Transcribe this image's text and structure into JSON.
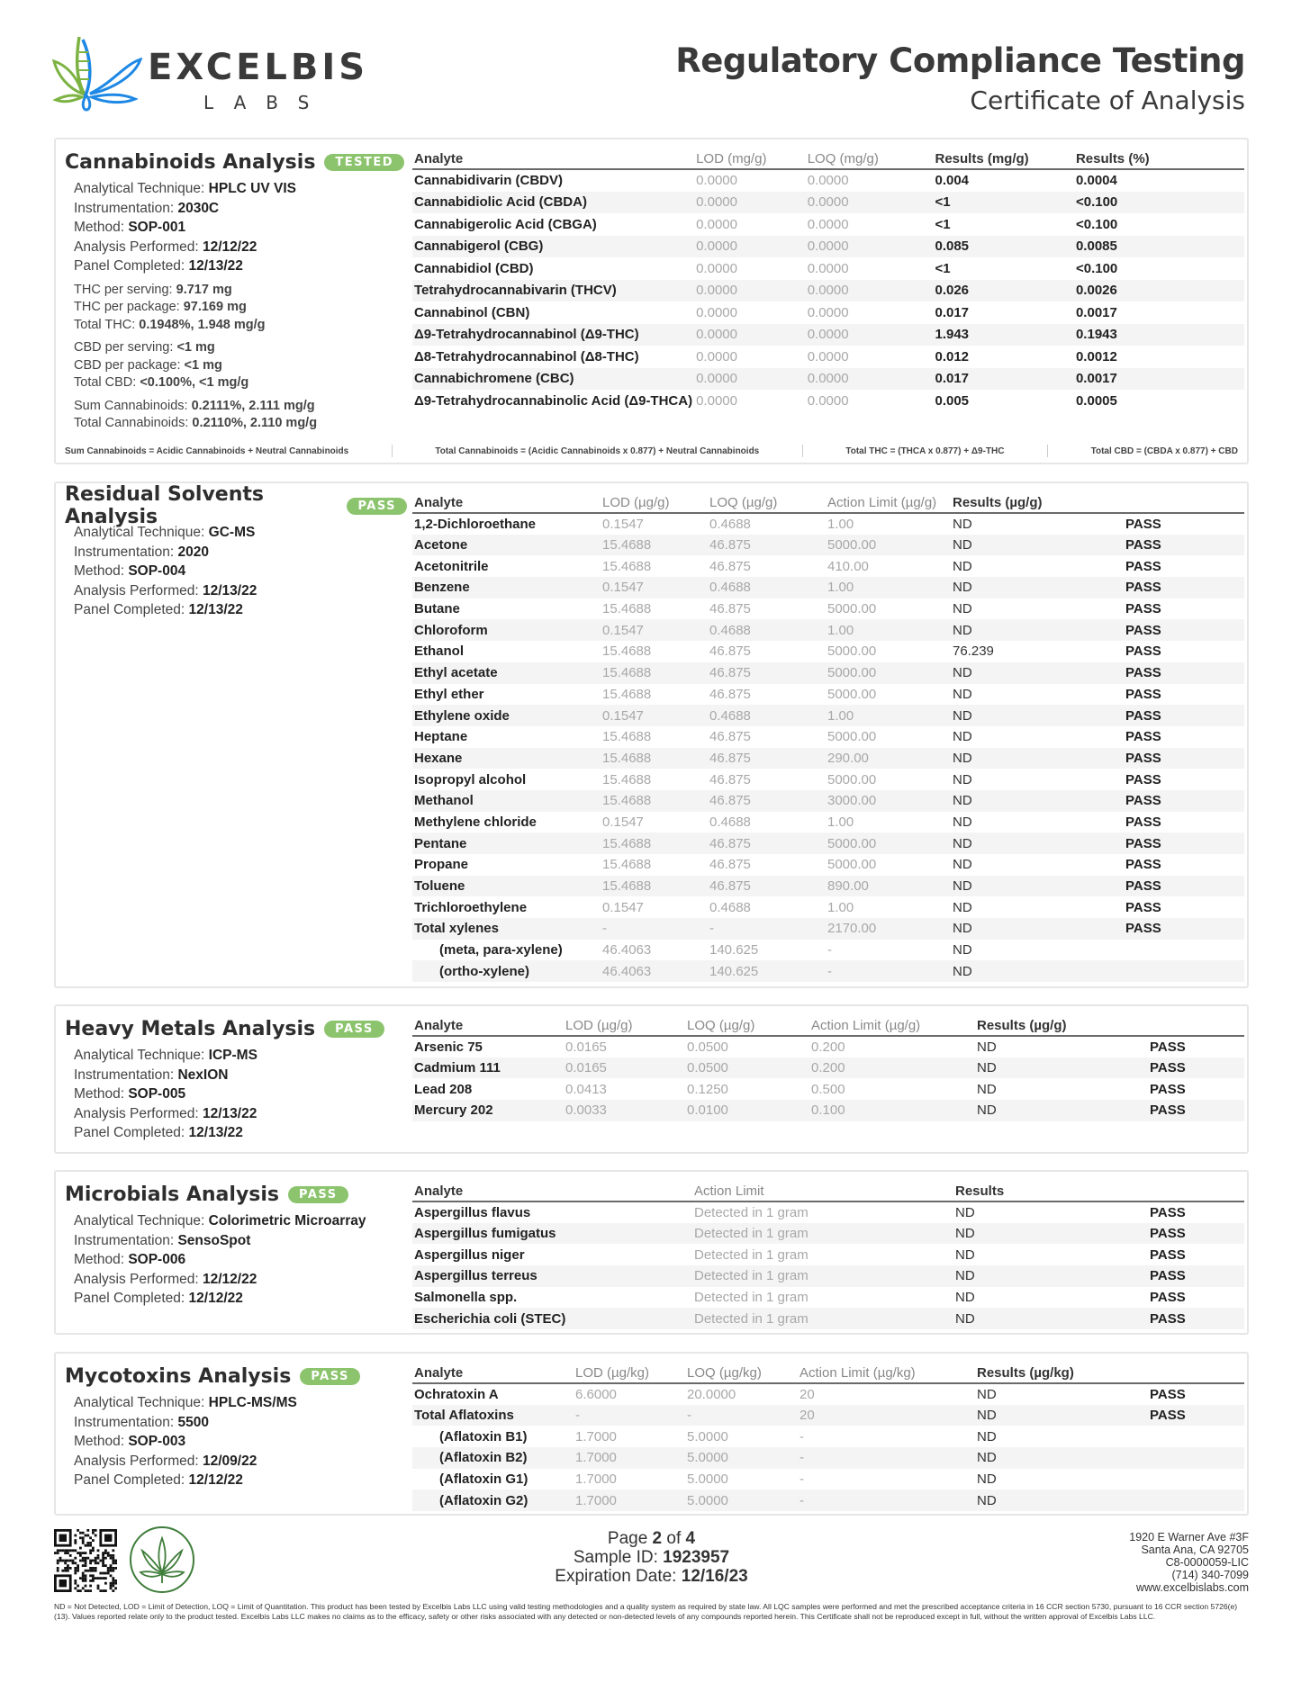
{
  "header": {
    "logo_word": "EXCELBIS",
    "logo_sub": "LABS",
    "title": "Regulatory Compliance Testing",
    "subtitle": "Certificate of Analysis"
  },
  "sections": [
    {
      "id": "cannabinoids",
      "title": "Cannabinoids Analysis",
      "badge": "TESTED",
      "info": [
        [
          "Analytical Technique: ",
          "HPLC UV VIS"
        ],
        [
          "Instrumentation: ",
          "2030C"
        ],
        [
          "Method: ",
          "SOP-001"
        ],
        [
          "Analysis Performed: ",
          "12/12/22"
        ],
        [
          "Panel Completed: ",
          "12/13/22"
        ]
      ],
      "groups": [
        [
          [
            "THC per serving: ",
            "9.717 mg"
          ],
          [
            "THC per package: ",
            "97.169 mg"
          ],
          [
            "Total THC: ",
            "0.1948%, 1.948 mg/g"
          ]
        ],
        [
          [
            "CBD per serving: ",
            "<1 mg"
          ],
          [
            "CBD per package: ",
            "<1 mg"
          ],
          [
            "Total CBD: ",
            "<0.100%, <1 mg/g"
          ]
        ],
        [
          [
            "Sum Cannabinoids: ",
            "0.2111%, 2.111 mg/g"
          ],
          [
            "Total Cannabinoids: ",
            "0.2110%, 2.110 mg/g"
          ]
        ]
      ],
      "columns": [
        "Analyte",
        "LOD (mg/g)",
        "LOQ (mg/g)",
        "Results (mg/g)",
        "Results (%)"
      ],
      "rows": [
        [
          "Cannabidivarin (CBDV)",
          "0.0000",
          "0.0000",
          "0.004",
          "0.0004"
        ],
        [
          "Cannabidiolic Acid (CBDA)",
          "0.0000",
          "0.0000",
          "<1",
          "<0.100"
        ],
        [
          "Cannabigerolic Acid (CBGA)",
          "0.0000",
          "0.0000",
          "<1",
          "<0.100"
        ],
        [
          "Cannabigerol (CBG)",
          "0.0000",
          "0.0000",
          "0.085",
          "0.0085"
        ],
        [
          "Cannabidiol (CBD)",
          "0.0000",
          "0.0000",
          "<1",
          "<0.100"
        ],
        [
          "Tetrahydrocannabivarin (THCV)",
          "0.0000",
          "0.0000",
          "0.026",
          "0.0026"
        ],
        [
          "Cannabinol (CBN)",
          "0.0000",
          "0.0000",
          "0.017",
          "0.0017"
        ],
        [
          "Δ9-Tetrahydrocannabinol (Δ9-THC)",
          "0.0000",
          "0.0000",
          "1.943",
          "0.1943"
        ],
        [
          "Δ8-Tetrahydrocannabinol (Δ8-THC)",
          "0.0000",
          "0.0000",
          "0.012",
          "0.0012"
        ],
        [
          "Cannabichromene (CBC)",
          "0.0000",
          "0.0000",
          "0.017",
          "0.0017"
        ],
        [
          "Δ9-Tetrahydrocannabinolic Acid (Δ9-THCA)",
          "0.0000",
          "0.0000",
          "0.005",
          "0.0005"
        ]
      ],
      "formulas": [
        "Sum Cannabinoids = Acidic Cannabinoids + Neutral Cannabinoids",
        "Total Cannabinoids = (Acidic Cannabinoids x 0.877) + Neutral Cannabinoids",
        "Total THC = (THCA x 0.877) + Δ9-THC",
        "Total CBD = (CBDA x 0.877) + CBD"
      ]
    },
    {
      "id": "solvents",
      "title": "Residual Solvents Analysis",
      "badge": "PASS",
      "info": [
        [
          "Analytical Technique: ",
          "GC-MS"
        ],
        [
          "Instrumentation: ",
          "2020"
        ],
        [
          "Method: ",
          "SOP-004"
        ],
        [
          "Analysis Performed: ",
          "12/13/22"
        ],
        [
          "Panel Completed: ",
          "12/13/22"
        ]
      ],
      "columns": [
        "Analyte",
        "LOD (µg/g)",
        "LOQ (µg/g)",
        "Action Limit (µg/g)",
        "Results (µg/g)",
        ""
      ],
      "rows": [
        [
          "1,2-Dichloroethane",
          "0.1547",
          "0.4688",
          "1.00",
          "ND",
          "PASS"
        ],
        [
          "Acetone",
          "15.4688",
          "46.875",
          "5000.00",
          "ND",
          "PASS"
        ],
        [
          "Acetonitrile",
          "15.4688",
          "46.875",
          "410.00",
          "ND",
          "PASS"
        ],
        [
          "Benzene",
          "0.1547",
          "0.4688",
          "1.00",
          "ND",
          "PASS"
        ],
        [
          "Butane",
          "15.4688",
          "46.875",
          "5000.00",
          "ND",
          "PASS"
        ],
        [
          "Chloroform",
          "0.1547",
          "0.4688",
          "1.00",
          "ND",
          "PASS"
        ],
        [
          "Ethanol",
          "15.4688",
          "46.875",
          "5000.00",
          "76.239",
          "PASS"
        ],
        [
          "Ethyl acetate",
          "15.4688",
          "46.875",
          "5000.00",
          "ND",
          "PASS"
        ],
        [
          "Ethyl ether",
          "15.4688",
          "46.875",
          "5000.00",
          "ND",
          "PASS"
        ],
        [
          "Ethylene oxide",
          "0.1547",
          "0.4688",
          "1.00",
          "ND",
          "PASS"
        ],
        [
          "Heptane",
          "15.4688",
          "46.875",
          "5000.00",
          "ND",
          "PASS"
        ],
        [
          "Hexane",
          "15.4688",
          "46.875",
          "290.00",
          "ND",
          "PASS"
        ],
        [
          "Isopropyl alcohol",
          "15.4688",
          "46.875",
          "5000.00",
          "ND",
          "PASS"
        ],
        [
          "Methanol",
          "15.4688",
          "46.875",
          "3000.00",
          "ND",
          "PASS"
        ],
        [
          "Methylene chloride",
          "0.1547",
          "0.4688",
          "1.00",
          "ND",
          "PASS"
        ],
        [
          "Pentane",
          "15.4688",
          "46.875",
          "5000.00",
          "ND",
          "PASS"
        ],
        [
          "Propane",
          "15.4688",
          "46.875",
          "5000.00",
          "ND",
          "PASS"
        ],
        [
          "Toluene",
          "15.4688",
          "46.875",
          "890.00",
          "ND",
          "PASS"
        ],
        [
          "Trichloroethylene",
          "0.1547",
          "0.4688",
          "1.00",
          "ND",
          "PASS"
        ],
        [
          "Total xylenes",
          "-",
          "-",
          "2170.00",
          "ND",
          "PASS"
        ],
        [
          "(meta, para-xylene)",
          "46.4063",
          "140.625",
          "-",
          "ND",
          ""
        ],
        [
          "(ortho-xylene)",
          "46.4063",
          "140.625",
          "-",
          "ND",
          ""
        ]
      ],
      "subrows": [
        20,
        21
      ]
    },
    {
      "id": "metals",
      "title": "Heavy Metals Analysis",
      "badge": "PASS",
      "info": [
        [
          "Analytical Technique: ",
          "ICP-MS"
        ],
        [
          "Instrumentation: ",
          "NexION"
        ],
        [
          "Method: ",
          "SOP-005"
        ],
        [
          "Analysis Performed: ",
          "12/13/22"
        ],
        [
          "Panel Completed: ",
          "12/13/22"
        ]
      ],
      "columns": [
        "Analyte",
        "LOD (µg/g)",
        "LOQ (µg/g)",
        "Action Limit (µg/g)",
        "Results (µg/g)",
        ""
      ],
      "rows": [
        [
          "Arsenic 75",
          "0.0165",
          "0.0500",
          "0.200",
          "ND",
          "PASS"
        ],
        [
          "Cadmium 111",
          "0.0165",
          "0.0500",
          "0.200",
          "ND",
          "PASS"
        ],
        [
          "Lead 208",
          "0.0413",
          "0.1250",
          "0.500",
          "ND",
          "PASS"
        ],
        [
          "Mercury 202",
          "0.0033",
          "0.0100",
          "0.100",
          "ND",
          "PASS"
        ]
      ]
    },
    {
      "id": "microbials",
      "title": "Microbials Analysis",
      "badge": "PASS",
      "info": [
        [
          "Analytical Technique: ",
          "Colorimetric Microarray"
        ],
        [
          "Instrumentation: ",
          "SensoSpot"
        ],
        [
          "Method: ",
          "SOP-006"
        ],
        [
          "Analysis Performed: ",
          "12/12/22"
        ],
        [
          "Panel Completed: ",
          "12/12/22"
        ]
      ],
      "columns": [
        "Analyte",
        "Action Limit",
        "Results",
        ""
      ],
      "rows": [
        [
          "Aspergillus flavus",
          "Detected in 1 gram",
          "ND",
          "PASS"
        ],
        [
          "Aspergillus fumigatus",
          "Detected in 1 gram",
          "ND",
          "PASS"
        ],
        [
          "Aspergillus niger",
          "Detected in 1 gram",
          "ND",
          "PASS"
        ],
        [
          "Aspergillus terreus",
          "Detected in 1 gram",
          "ND",
          "PASS"
        ],
        [
          "Salmonella spp.",
          "Detected in 1 gram",
          "ND",
          "PASS"
        ],
        [
          "Escherichia coli (STEC)",
          "Detected in 1 gram",
          "ND",
          "PASS"
        ]
      ]
    },
    {
      "id": "mycotoxins",
      "title": "Mycotoxins Analysis",
      "badge": "PASS",
      "info": [
        [
          "Analytical Technique: ",
          "HPLC-MS/MS"
        ],
        [
          "Instrumentation: ",
          "5500"
        ],
        [
          "Method: ",
          "SOP-003"
        ],
        [
          "Analysis Performed: ",
          "12/09/22"
        ],
        [
          "Panel Completed: ",
          "12/12/22"
        ]
      ],
      "columns": [
        "Analyte",
        "LOD (µg/kg)",
        "LOQ (µg/kg)",
        "Action Limit (µg/kg)",
        "Results (µg/kg)",
        ""
      ],
      "rows": [
        [
          "Ochratoxin A",
          "6.6000",
          "20.0000",
          "20",
          "ND",
          "PASS"
        ],
        [
          "Total Aflatoxins",
          "-",
          "-",
          "20",
          "ND",
          "PASS"
        ],
        [
          "(Aflatoxin B1)",
          "1.7000",
          "5.0000",
          "-",
          "ND",
          ""
        ],
        [
          "(Aflatoxin B2)",
          "1.7000",
          "5.0000",
          "-",
          "ND",
          ""
        ],
        [
          "(Aflatoxin G1)",
          "1.7000",
          "5.0000",
          "-",
          "ND",
          ""
        ],
        [
          "(Aflatoxin G2)",
          "1.7000",
          "5.0000",
          "-",
          "ND",
          ""
        ]
      ],
      "subrows": [
        2,
        3,
        4,
        5
      ]
    }
  ],
  "footer": {
    "page_label": "Page ",
    "page": "2",
    "page_of": " of ",
    "page_total": "4",
    "sample_label": "Sample ID: ",
    "sample_id": "1923957",
    "exp_label": "Expiration Date: ",
    "exp_date": "12/16/23",
    "address": [
      "1920 E Warner Ave #3F",
      "Santa Ana, CA 92705",
      "C8-0000059-LIC",
      "(714) 340-7099",
      "www.excelbislabs.com"
    ],
    "disclaimer": "ND = Not Detected, LOD = Limit of Detection, LOQ = Limit of Quantitation. This product has been tested by Excelbis Labs LLC using valid testing methodologies and a quality system as required by state law. All LQC samples were performed and met the prescribed acceptance criteria in 16 CCR section 5730, pursuant to 16 CCR section 5726(e)(13). Values reported relate only to the product tested. Excelbis Labs LLC makes no claims as to the efficacy, safety or other risks associated with any detected or non-detected levels of any compounds reported herein. This Certificate shall not be reproduced except in full, without the written approval of Excelbis Labs LLC."
  },
  "colors": {
    "badge": "#8cc46e",
    "logo_green": "#7cb342",
    "logo_blue": "#1e88e5",
    "seal_green": "#3f7d3a"
  }
}
